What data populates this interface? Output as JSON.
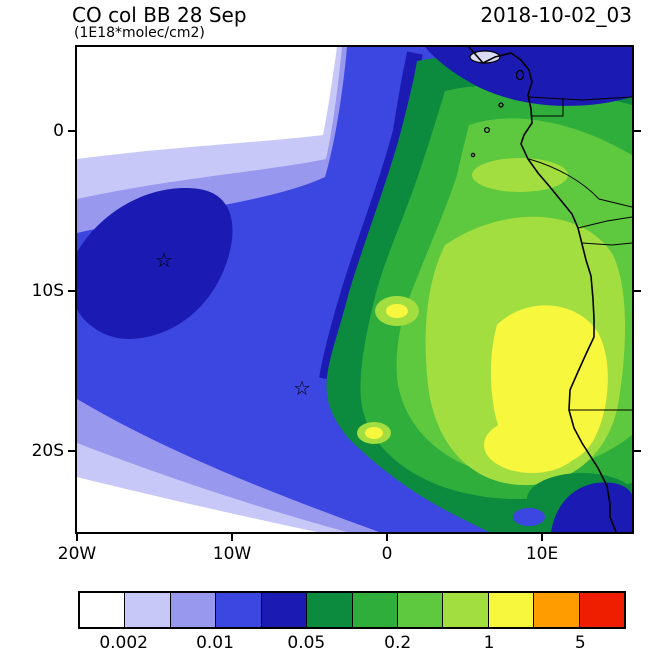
{
  "header": {
    "title": "CO col BB 28 Sep",
    "subtitle": "(1E18*molec/cm2)",
    "timestamp": "2018-10-02_03"
  },
  "axes": {
    "y_ticks": [
      "0",
      "10S",
      "20S"
    ],
    "x_ticks": [
      "20W",
      "10W",
      "0",
      "10E"
    ]
  },
  "colorbar": {
    "colors": [
      "#ffffff",
      "#c8c8f8",
      "#9898ee",
      "#3c46e0",
      "#1b1bb3",
      "#0c8a3e",
      "#2fae3c",
      "#5ec93e",
      "#a2de40",
      "#f7f73e",
      "#ff9c00",
      "#f01e00"
    ],
    "labels": [
      "0.002",
      "0.01",
      "0.05",
      "0.2",
      "1",
      "5"
    ]
  },
  "chart_data": {
    "type": "heatmap",
    "title": "CO col BB 28 Sep",
    "units": "1E18*molec/cm2",
    "valid_time": "2018-10-02_03",
    "variable": "CO column (biomass burning)",
    "projection": "lat-lon map, SE Atlantic / western-central Africa",
    "x": {
      "tick_labels": [
        "20W",
        "10W",
        "0",
        "10E"
      ],
      "tick_lons": [
        -20,
        -10,
        0,
        10
      ],
      "lon_range": [
        -20,
        15.8
      ]
    },
    "y": {
      "tick_labels": [
        "0",
        "10S",
        "20S"
      ],
      "tick_lats": [
        0,
        -10,
        -20
      ],
      "lat_range": [
        -25.2,
        5.3
      ]
    },
    "contour_levels": [
      0.002,
      0.005,
      0.01,
      0.02,
      0.05,
      0.1,
      0.2,
      0.5,
      1,
      2,
      5
    ],
    "labeled_levels": [
      "0.002",
      "0.01",
      "0.05",
      "0.2",
      "1",
      "5"
    ],
    "palette": [
      "#ffffff",
      "#c8c8f8",
      "#9898ee",
      "#3c46e0",
      "#1b1bb3",
      "#0c8a3e",
      "#2fae3c",
      "#5ec93e",
      "#a2de40",
      "#f7f73e",
      "#ff9c00",
      "#f01e00"
    ],
    "legend_position": "bottom",
    "grid": false,
    "markers": [
      {
        "symbol": "star",
        "lon": -14.4,
        "lat": -8.0
      },
      {
        "symbol": "star",
        "lon": -5.5,
        "lat": -16.0
      }
    ],
    "field_summary": [
      {
        "region": "plume core ~5E-13E, 10S-22S",
        "value_band": "1-2 (yellow)"
      },
      {
        "region": "broad plume over SE Atlantic and Angola/Congo",
        "value_band": "0.1-0.5 (greens)"
      },
      {
        "region": "Gulf of Guinea coastal band and bottom-right corner",
        "value_band": "0.02-0.05 (dark blue)"
      },
      {
        "region": "NW lobe near 14W, 8S",
        "value_band": "0.02-0.05 (dark blue)"
      },
      {
        "region": "outer plume fringe west/north",
        "value_band": "0.002-0.01 (light purple/blue)"
      },
      {
        "region": "NW and SW corners of domain",
        "value_band": "<0.002 (white)"
      }
    ]
  }
}
